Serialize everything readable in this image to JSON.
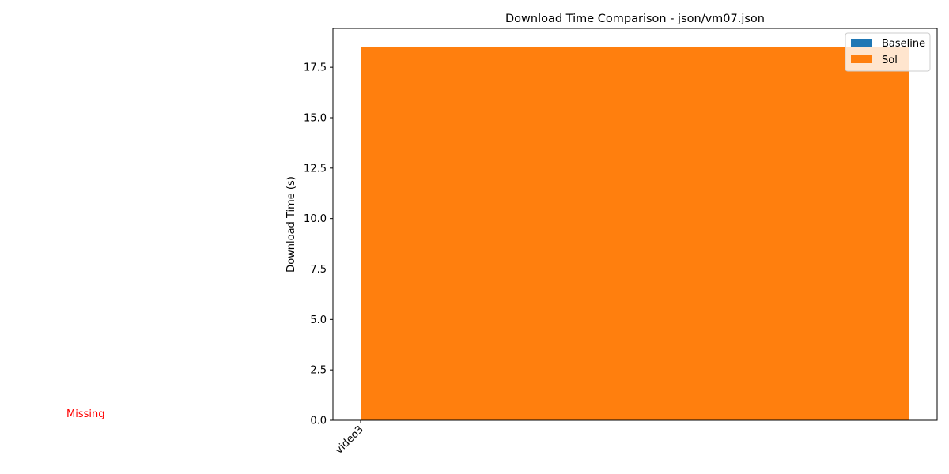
{
  "chart_data": {
    "type": "bar",
    "title": "Download Time Comparison - json/vm07.json",
    "xlabel": "",
    "ylabel": "Download Time (s)",
    "categories": [
      "video3"
    ],
    "series": [
      {
        "name": "Baseline",
        "values": [
          0
        ],
        "color": "#1f77b4"
      },
      {
        "name": "Sol",
        "values": [
          18.5
        ],
        "color": "#ff7f0e"
      }
    ],
    "ylim": [
      0,
      19.425
    ],
    "yticks": [
      0.0,
      2.5,
      5.0,
      7.5,
      10.0,
      12.5,
      15.0,
      17.5
    ],
    "ytick_labels": [
      "0.0",
      "2.5",
      "5.0",
      "7.5",
      "10.0",
      "12.5",
      "15.0",
      "17.5"
    ],
    "grid": false,
    "legend_position": "upper right",
    "annotation": {
      "text": "Missing",
      "color": "#ff0000"
    }
  }
}
